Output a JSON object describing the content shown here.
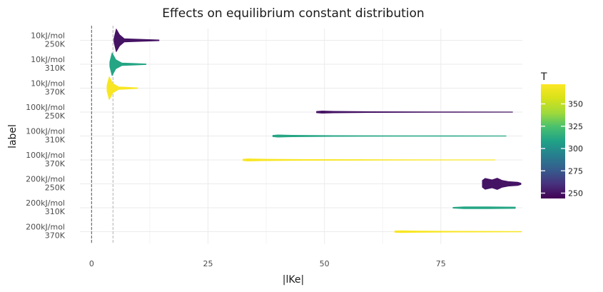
{
  "chart_data": {
    "type": "violin",
    "orientation": "horizontal",
    "title": "Effects on equilibrium constant distribution",
    "xlabel": "|lKe|",
    "ylabel": "label",
    "xlim": [
      -2.5,
      92.5
    ],
    "x_ticks": [
      0,
      25,
      50,
      75
    ],
    "grid": true,
    "legend_position": "right",
    "reference_lines": [
      0,
      4.6
    ],
    "categories": [
      [
        "10kJ/mol",
        "250K"
      ],
      [
        "10kJ/mol",
        "310K"
      ],
      [
        "10kJ/mol",
        "370K"
      ],
      [
        "100kJ/mol",
        "250K"
      ],
      [
        "100kJ/mol",
        "310K"
      ],
      [
        "100kJ/mol",
        "370K"
      ],
      [
        "200kJ/mol",
        "250K"
      ],
      [
        "200kJ/mol",
        "310K"
      ],
      [
        "200kJ/mol",
        "370K"
      ]
    ],
    "series": [
      {
        "temperature": 250,
        "min": 4.8,
        "max": 14.5,
        "profile": [
          [
            4.8,
            0.15
          ],
          [
            5.3,
            1.0
          ],
          [
            6.0,
            0.5
          ],
          [
            7.0,
            0.15
          ],
          [
            9.0,
            0.12
          ],
          [
            14.5,
            0.04
          ]
        ]
      },
      {
        "temperature": 310,
        "min": 3.9,
        "max": 11.7,
        "profile": [
          [
            3.9,
            0.2
          ],
          [
            4.4,
            1.0
          ],
          [
            5.2,
            0.4
          ],
          [
            6.5,
            0.12
          ],
          [
            8.5,
            0.08
          ],
          [
            11.7,
            0.03
          ]
        ]
      },
      {
        "temperature": 370,
        "min": 3.3,
        "max": 9.9,
        "profile": [
          [
            3.3,
            0.25
          ],
          [
            3.8,
            1.0
          ],
          [
            4.6,
            0.4
          ],
          [
            5.8,
            0.12
          ],
          [
            7.5,
            0.08
          ],
          [
            9.9,
            0.03
          ]
        ]
      },
      {
        "temperature": 250,
        "min": 48.3,
        "max": 90.4,
        "profile": [
          [
            48.3,
            0.06
          ],
          [
            49.5,
            0.1
          ],
          [
            52.0,
            0.07
          ],
          [
            60.0,
            0.04
          ],
          [
            75.0,
            0.025
          ],
          [
            90.4,
            0.01
          ]
        ]
      },
      {
        "temperature": 310,
        "min": 38.9,
        "max": 89.0,
        "profile": [
          [
            38.9,
            0.06
          ],
          [
            40.0,
            0.1
          ],
          [
            43.0,
            0.07
          ],
          [
            52.0,
            0.04
          ],
          [
            70.0,
            0.025
          ],
          [
            89.0,
            0.01
          ]
        ]
      },
      {
        "temperature": 370,
        "min": 32.5,
        "max": 86.6,
        "profile": [
          [
            32.5,
            0.06
          ],
          [
            33.5,
            0.1
          ],
          [
            37.0,
            0.07
          ],
          [
            46.0,
            0.04
          ],
          [
            65.0,
            0.025
          ],
          [
            86.6,
            0.01
          ]
        ]
      },
      {
        "temperature": 250,
        "min": 83.9,
        "max": 92.2,
        "profile": [
          [
            83.9,
            0.3
          ],
          [
            84.5,
            0.48
          ],
          [
            86.0,
            0.35
          ],
          [
            87.1,
            0.5
          ],
          [
            88.2,
            0.3
          ],
          [
            89.5,
            0.2
          ],
          [
            91.5,
            0.15
          ],
          [
            92.2,
            0.06
          ]
        ]
      },
      {
        "temperature": 310,
        "min": 77.6,
        "max": 91.0,
        "profile": [
          [
            77.6,
            0.04
          ],
          [
            80.0,
            0.08
          ],
          [
            85.0,
            0.08
          ],
          [
            91.0,
            0.06
          ]
        ]
      },
      {
        "temperature": 370,
        "min": 65.1,
        "max": 92.3,
        "profile": [
          [
            65.1,
            0.06
          ],
          [
            66.5,
            0.09
          ],
          [
            70.0,
            0.06
          ],
          [
            78.0,
            0.04
          ],
          [
            86.0,
            0.03
          ],
          [
            92.3,
            0.02
          ]
        ]
      }
    ],
    "colorbar": {
      "title": "T",
      "min": 244,
      "max": 372,
      "ticks": [
        250,
        275,
        300,
        325,
        350
      ]
    },
    "colors": {
      "low": "#440154",
      "mid": "#21918c",
      "high": "#fde725",
      "grid": "#ebebeb",
      "ref_dark": "#555555",
      "ref_light": "#b3b3b3"
    }
  }
}
